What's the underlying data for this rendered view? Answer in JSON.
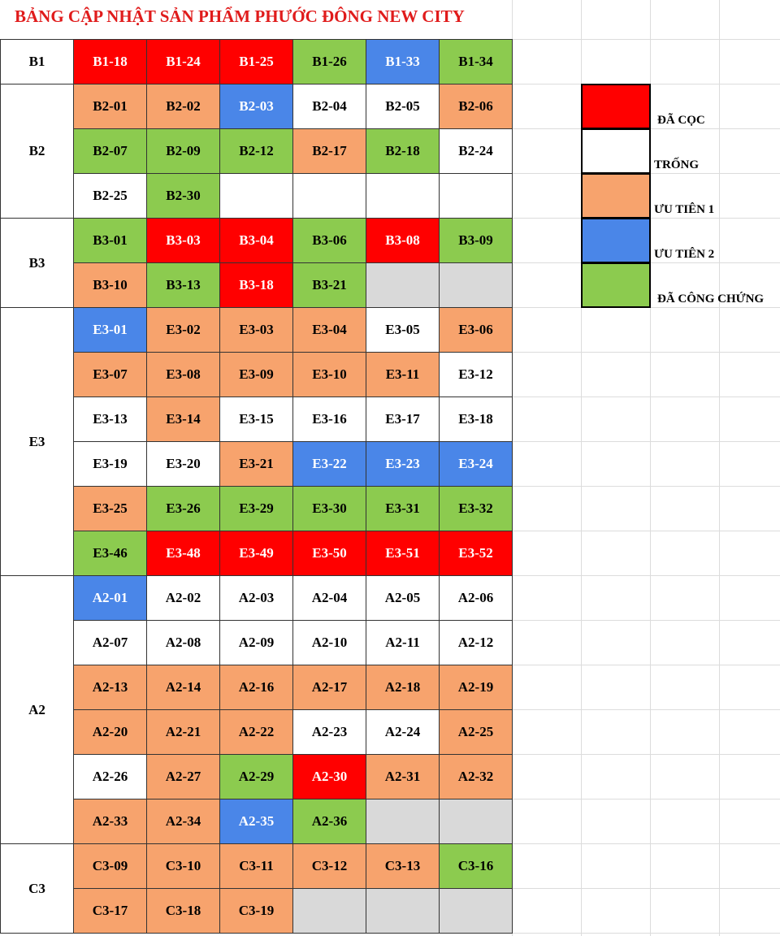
{
  "title": "BẢNG CẬP NHẬT SẢN PHẨM PHƯỚC ĐÔNG NEW CITY",
  "groups": [
    {
      "name": "B1",
      "rows": [
        {
          "labels": [
            "B1-18",
            "B1-24",
            "B1-25",
            "B1-26",
            "B1-33",
            "B1-34"
          ],
          "colors": [
            "#ff0000",
            "#ff0000",
            "#ff0000",
            "#8ccb4f",
            "#4a86e8",
            "#8ccb4f"
          ]
        }
      ]
    },
    {
      "name": "B2",
      "rows": [
        {
          "labels": [
            "B2-01",
            "B2-02",
            "B2-03",
            "B2-04",
            "B2-05",
            "B2-06"
          ],
          "colors": [
            "#f7a36d",
            "#f7a36d",
            "#4a86e8",
            "#ffffff",
            "#ffffff",
            "#f7a36d"
          ]
        },
        {
          "labels": [
            "B2-07",
            "B2-09",
            "B2-12",
            "B2-17",
            "B2-18",
            "B2-24"
          ],
          "colors": [
            "#8ccb4f",
            "#8ccb4f",
            "#8ccb4f",
            "#f7a36d",
            "#8ccb4f",
            "#ffffff"
          ]
        },
        {
          "labels": [
            "B2-25",
            "B2-30",
            null,
            null,
            null,
            null
          ],
          "colors": [
            "#ffffff",
            "#8ccb4f",
            "#ffffff",
            "#ffffff",
            "#ffffff",
            "#ffffff"
          ]
        }
      ]
    },
    {
      "name": "B3",
      "rows": [
        {
          "labels": [
            "B3-01",
            "B3-03",
            "B3-04",
            "B3-06",
            "B3-08",
            "B3-09"
          ],
          "colors": [
            "#8ccb4f",
            "#ff0000",
            "#ff0000",
            "#8ccb4f",
            "#ff0000",
            "#8ccb4f"
          ]
        },
        {
          "labels": [
            "B3-10",
            "B3-13",
            "B3-18",
            "B3-21",
            null,
            null
          ],
          "colors": [
            "#f7a36d",
            "#8ccb4f",
            "#ff0000",
            "#8ccb4f",
            "#d9d9d9",
            "#d9d9d9"
          ]
        }
      ]
    },
    {
      "name": "E3",
      "rows": [
        {
          "labels": [
            "E3-01",
            "E3-02",
            "E3-03",
            "E3-04",
            "E3-05",
            "E3-06"
          ],
          "colors": [
            "#4a86e8",
            "#f7a36d",
            "#f7a36d",
            "#f7a36d",
            "#ffffff",
            "#f7a36d"
          ]
        },
        {
          "labels": [
            "E3-07",
            "E3-08",
            "E3-09",
            "E3-10",
            "E3-11",
            "E3-12"
          ],
          "colors": [
            "#f7a36d",
            "#f7a36d",
            "#f7a36d",
            "#f7a36d",
            "#f7a36d",
            "#ffffff"
          ]
        },
        {
          "labels": [
            "E3-13",
            "E3-14",
            "E3-15",
            "E3-16",
            "E3-17",
            "E3-18"
          ],
          "colors": [
            "#ffffff",
            "#f7a36d",
            "#ffffff",
            "#ffffff",
            "#ffffff",
            "#ffffff"
          ]
        },
        {
          "labels": [
            "E3-19",
            "E3-20",
            "E3-21",
            "E3-22",
            "E3-23",
            "E3-24"
          ],
          "colors": [
            "#ffffff",
            "#ffffff",
            "#f7a36d",
            "#4a86e8",
            "#4a86e8",
            "#4a86e8"
          ]
        },
        {
          "labels": [
            "E3-25",
            "E3-26",
            "E3-29",
            "E3-30",
            "E3-31",
            "E3-32"
          ],
          "colors": [
            "#f7a36d",
            "#8ccb4f",
            "#8ccb4f",
            "#8ccb4f",
            "#8ccb4f",
            "#8ccb4f"
          ]
        },
        {
          "labels": [
            "E3-46",
            "E3-48",
            "E3-49",
            "E3-50",
            "E3-51",
            "E3-52"
          ],
          "colors": [
            "#8ccb4f",
            "#ff0000",
            "#ff0000",
            "#ff0000",
            "#ff0000",
            "#ff0000"
          ]
        }
      ]
    },
    {
      "name": "A2",
      "rows": [
        {
          "labels": [
            "A2-01",
            "A2-02",
            "A2-03",
            "A2-04",
            "A2-05",
            "A2-06"
          ],
          "colors": [
            "#4a86e8",
            "#ffffff",
            "#ffffff",
            "#ffffff",
            "#ffffff",
            "#ffffff"
          ]
        },
        {
          "labels": [
            "A2-07",
            "A2-08",
            "A2-09",
            "A2-10",
            "A2-11",
            "A2-12"
          ],
          "colors": [
            "#ffffff",
            "#ffffff",
            "#ffffff",
            "#ffffff",
            "#ffffff",
            "#ffffff"
          ]
        },
        {
          "labels": [
            "A2-13",
            "A2-14",
            "A2-16",
            "A2-17",
            "A2-18",
            "A2-19"
          ],
          "colors": [
            "#f7a36d",
            "#f7a36d",
            "#f7a36d",
            "#f7a36d",
            "#f7a36d",
            "#f7a36d"
          ]
        },
        {
          "labels": [
            "A2-20",
            "A2-21",
            "A2-22",
            "A2-23",
            "A2-24",
            "A2-25"
          ],
          "colors": [
            "#f7a36d",
            "#f7a36d",
            "#f7a36d",
            "#ffffff",
            "#ffffff",
            "#f7a36d"
          ]
        },
        {
          "labels": [
            "A2-26",
            "A2-27",
            "A2-29",
            "A2-30",
            "A2-31",
            "A2-32"
          ],
          "colors": [
            "#ffffff",
            "#f7a36d",
            "#8ccb4f",
            "#ff0000",
            "#f7a36d",
            "#f7a36d"
          ]
        },
        {
          "labels": [
            "A2-33",
            "A2-34",
            "A2-35",
            "A2-36",
            null,
            null
          ],
          "colors": [
            "#f7a36d",
            "#f7a36d",
            "#4a86e8",
            "#8ccb4f",
            "#d9d9d9",
            "#d9d9d9"
          ]
        }
      ]
    },
    {
      "name": "C3",
      "rows": [
        {
          "labels": [
            "C3-09",
            "C3-10",
            "C3-11",
            "C3-12",
            "C3-13",
            "C3-16"
          ],
          "colors": [
            "#f7a36d",
            "#f7a36d",
            "#f7a36d",
            "#f7a36d",
            "#f7a36d",
            "#8ccb4f"
          ]
        },
        {
          "labels": [
            "C3-17",
            "C3-18",
            "C3-19",
            null,
            null,
            null
          ],
          "colors": [
            "#f7a36d",
            "#f7a36d",
            "#f7a36d",
            "#d9d9d9",
            "#d9d9d9",
            "#d9d9d9"
          ]
        }
      ]
    }
  ],
  "legend": [
    {
      "label": "ĐÃ CỌC",
      "color": "#ff0000"
    },
    {
      "label": "TRỐNG",
      "color": "#ffffff"
    },
    {
      "label": "ƯU TIÊN 1",
      "color": "#f7a36d"
    },
    {
      "label": "ƯU TIÊN 2",
      "color": "#4a86e8"
    },
    {
      "label": "ĐÃ CÔNG CHỨNG",
      "color": "#8ccb4f"
    }
  ]
}
